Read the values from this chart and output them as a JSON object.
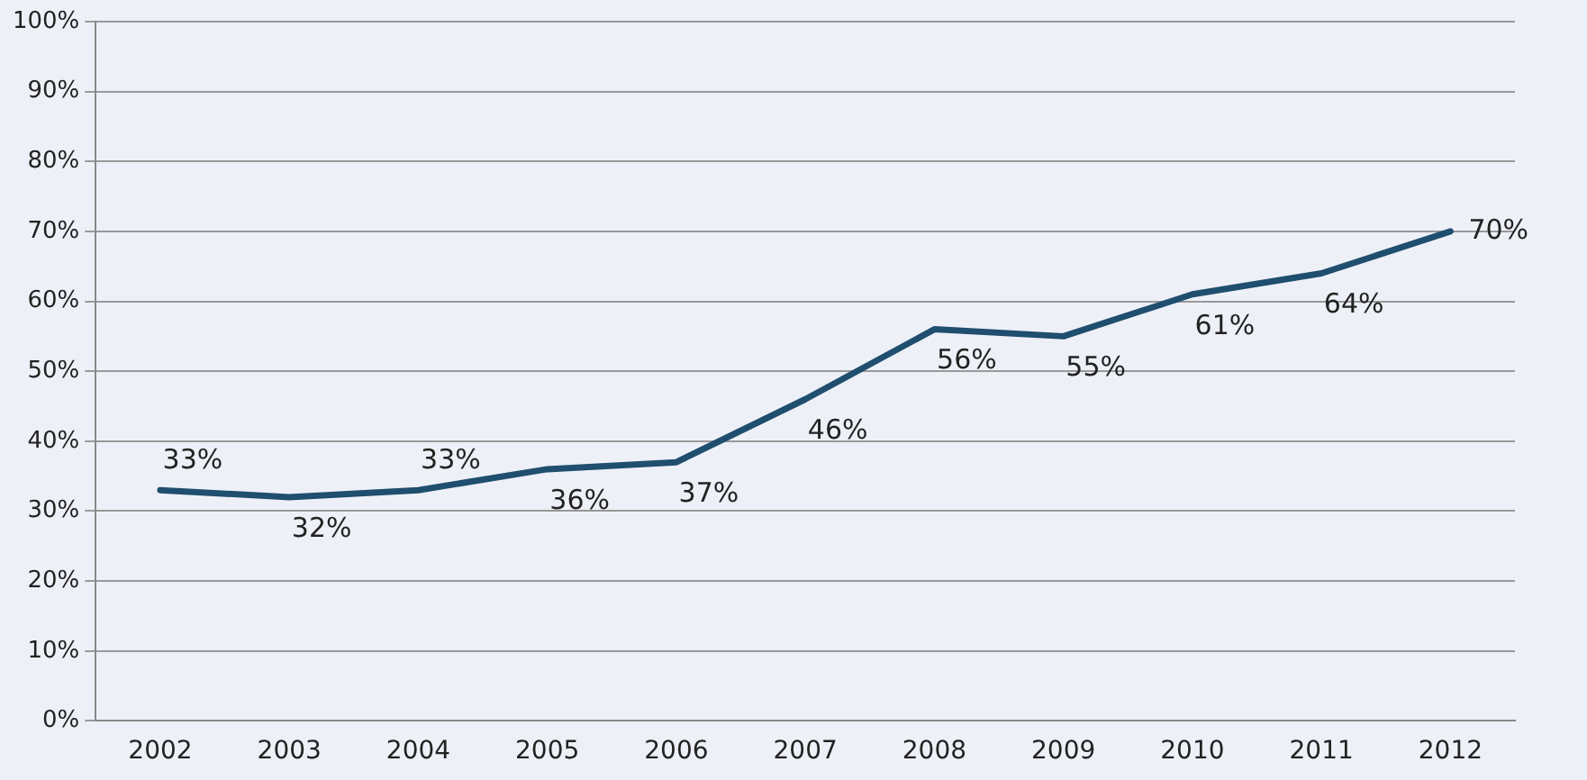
{
  "chart_data": {
    "type": "line",
    "categories": [
      "2002",
      "2003",
      "2004",
      "2005",
      "2006",
      "2007",
      "2008",
      "2009",
      "2010",
      "2011",
      "2012"
    ],
    "series": [
      {
        "color": "#1f4e6e",
        "values": [
          33,
          32,
          33,
          36,
          37,
          46,
          56,
          55,
          61,
          64,
          70
        ]
      }
    ],
    "value_labels": [
      "33%",
      "32%",
      "33%",
      "36%",
      "37%",
      "46%",
      "56%",
      "55%",
      "61%",
      "64%",
      "70%"
    ],
    "ylim": [
      0,
      100
    ],
    "yticks": [
      {
        "value": 0,
        "label": "0%"
      },
      {
        "value": 10,
        "label": "10%"
      },
      {
        "value": 20,
        "label": "20%"
      },
      {
        "value": 30,
        "label": "30%"
      },
      {
        "value": 40,
        "label": "40%"
      },
      {
        "value": 50,
        "label": "50%"
      },
      {
        "value": 60,
        "label": "60%"
      },
      {
        "value": 70,
        "label": "70%"
      },
      {
        "value": 80,
        "label": "80%"
      },
      {
        "value": 90,
        "label": "90%"
      },
      {
        "value": 100,
        "label": "100%"
      }
    ],
    "grid": "y",
    "legend": false,
    "marker": "none",
    "line_style": "solid"
  }
}
